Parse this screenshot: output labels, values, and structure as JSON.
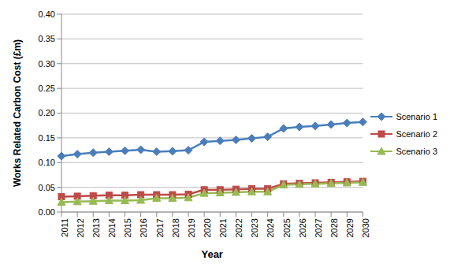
{
  "chart_data": {
    "type": "line",
    "x_label": "Year",
    "y_label": "Works Related Carbon Cost (£m)",
    "categories": [
      "2011",
      "2012",
      "2013",
      "2014",
      "2015",
      "2016",
      "2017",
      "2018",
      "2019",
      "2020",
      "2021",
      "2022",
      "2023",
      "2024",
      "2025",
      "2026",
      "2027",
      "2028",
      "2029",
      "2030"
    ],
    "series": [
      {
        "name": "Scenario 1",
        "color": "#4a7ebb",
        "marker": "diamond",
        "values": [
          0.113,
          0.117,
          0.12,
          0.122,
          0.124,
          0.126,
          0.122,
          0.123,
          0.125,
          0.142,
          0.144,
          0.146,
          0.149,
          0.152,
          0.169,
          0.172,
          0.174,
          0.177,
          0.18,
          0.182
        ]
      },
      {
        "name": "Scenario 2",
        "color": "#be4b48",
        "marker": "square",
        "values": [
          0.031,
          0.032,
          0.033,
          0.034,
          0.034,
          0.035,
          0.035,
          0.035,
          0.036,
          0.045,
          0.045,
          0.046,
          0.047,
          0.047,
          0.057,
          0.058,
          0.059,
          0.06,
          0.061,
          0.062
        ]
      },
      {
        "name": "Scenario 3",
        "color": "#98b954",
        "marker": "triangle",
        "values": [
          0.02,
          0.021,
          0.022,
          0.023,
          0.023,
          0.024,
          0.028,
          0.028,
          0.029,
          0.038,
          0.039,
          0.04,
          0.041,
          0.041,
          0.055,
          0.056,
          0.057,
          0.058,
          0.059,
          0.06
        ]
      }
    ],
    "ylim": [
      0,
      0.4
    ],
    "yticks": [
      {
        "value": 0,
        "label": "0.00"
      },
      {
        "value": 0.05,
        "label": "0.05"
      },
      {
        "value": 0.1,
        "label": "0.10"
      },
      {
        "value": 0.15,
        "label": "0.15"
      },
      {
        "value": 0.2,
        "label": "0.20"
      },
      {
        "value": 0.25,
        "label": "0.25"
      },
      {
        "value": 0.3,
        "label": "0.30"
      },
      {
        "value": 0.35,
        "label": "0.35"
      },
      {
        "value": 0.4,
        "label": "0.40"
      }
    ],
    "grid": true,
    "legend": "right"
  }
}
